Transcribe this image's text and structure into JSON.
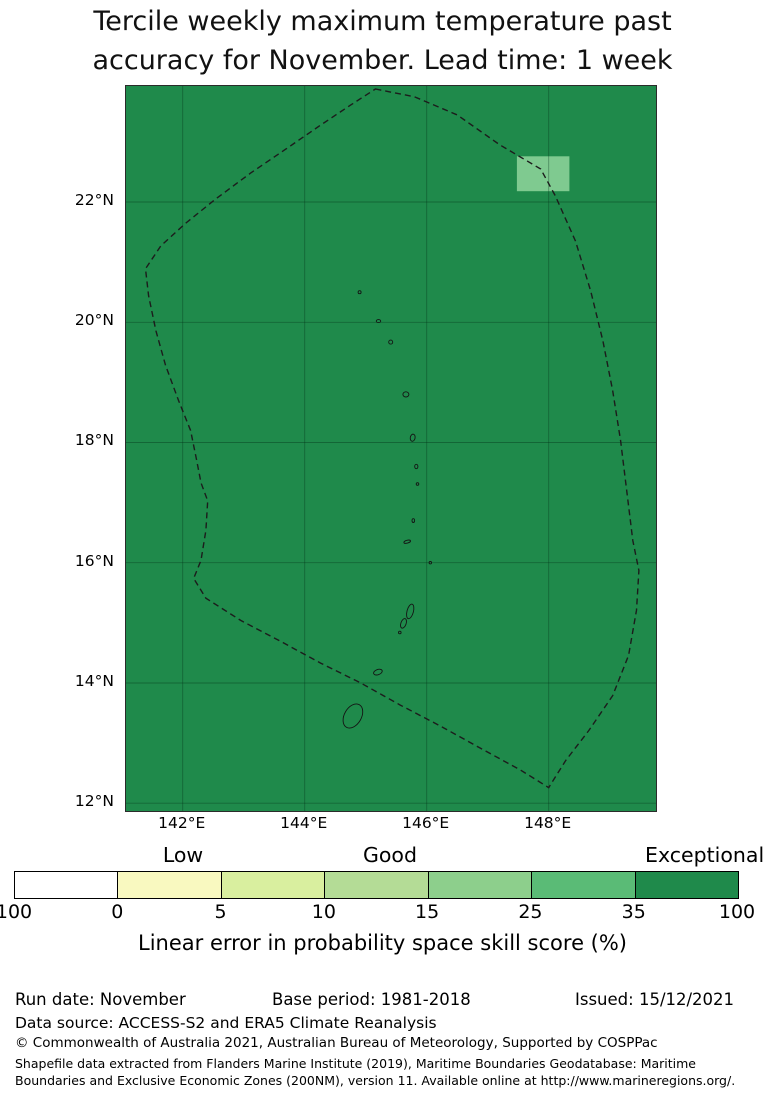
{
  "title": {
    "line1": "Tercile weekly maximum temperature past",
    "line2": "accuracy for November. Lead time: 1 week"
  },
  "footer": {
    "run_date": "Run date: November",
    "base_period": "Base period: 1981-2018",
    "issued": "Issued: 15/12/2021",
    "data_source": "Data source: ACCESS-S2 and ERA5 Climate Reanalysis",
    "copyright": "© Commonwealth of Australia 2021, Australian Bureau of Meteorology, Supported by COSPPac",
    "shapefile_note": "Shapefile data extracted from Flanders Marine Institute (2019), Maritime Boundaries Geodatabase: Maritime Boundaries and Exclusive Economic Zones (200NM), version 11. Available online at http://www.marineregions.org/."
  },
  "chart_data": {
    "type": "heatmap",
    "title": "Tercile weekly maximum temperature past accuracy for November. Lead time: 1 week",
    "projection": "lon-lat",
    "lon_range": [
      141.07,
      149.76
    ],
    "lat_range": [
      11.87,
      23.93
    ],
    "grid": true,
    "fill_color": "#1f8a4b",
    "fill_value_bin": "35-100",
    "grid_color": "rgba(0,45,20,0.38)",
    "x_ticks": [
      {
        "label": "142°E",
        "lon": 142
      },
      {
        "label": "144°E",
        "lon": 144
      },
      {
        "label": "146°E",
        "lon": 146
      },
      {
        "label": "148°E",
        "lon": 148
      }
    ],
    "y_ticks": [
      {
        "label": "12°N",
        "lat": 12
      },
      {
        "label": "14°N",
        "lat": 14
      },
      {
        "label": "16°N",
        "lat": 16
      },
      {
        "label": "18°N",
        "lat": 18
      },
      {
        "label": "20°N",
        "lat": 20
      },
      {
        "label": "22°N",
        "lat": 22
      }
    ],
    "anomaly_cell": {
      "lon_min": 147.48,
      "lon_max": 148.34,
      "lat_min": 22.18,
      "lat_max": 22.76,
      "color": "#7fca90",
      "value_bin": "15-25"
    },
    "boundary_dashed": [
      [
        145.16,
        23.88
      ],
      [
        145.8,
        23.75
      ],
      [
        146.5,
        23.45
      ],
      [
        147.2,
        22.95
      ],
      [
        147.87,
        22.55
      ],
      [
        148.11,
        22.1
      ],
      [
        148.44,
        21.35
      ],
      [
        148.69,
        20.52
      ],
      [
        148.89,
        19.69
      ],
      [
        149.05,
        18.86
      ],
      [
        149.18,
        18.03
      ],
      [
        149.28,
        17.2
      ],
      [
        149.38,
        16.37
      ],
      [
        149.48,
        15.87
      ],
      [
        149.44,
        15.21
      ],
      [
        149.31,
        14.46
      ],
      [
        149.05,
        13.79
      ],
      [
        148.66,
        13.21
      ],
      [
        148.28,
        12.71
      ],
      [
        148.0,
        12.26
      ],
      [
        147.54,
        12.55
      ],
      [
        146.89,
        12.91
      ],
      [
        146.23,
        13.28
      ],
      [
        145.57,
        13.63
      ],
      [
        144.92,
        14.0
      ],
      [
        144.26,
        14.33
      ],
      [
        143.61,
        14.69
      ],
      [
        142.95,
        15.04
      ],
      [
        142.38,
        15.41
      ],
      [
        142.18,
        15.74
      ],
      [
        142.3,
        16.04
      ],
      [
        142.38,
        16.54
      ],
      [
        142.41,
        17.03
      ],
      [
        142.3,
        17.33
      ],
      [
        142.23,
        17.7
      ],
      [
        142.13,
        18.2
      ],
      [
        141.93,
        18.7
      ],
      [
        141.72,
        19.28
      ],
      [
        141.56,
        19.86
      ],
      [
        141.44,
        20.44
      ],
      [
        141.39,
        20.89
      ],
      [
        141.64,
        21.27
      ],
      [
        142.05,
        21.65
      ],
      [
        142.54,
        22.05
      ],
      [
        143.11,
        22.48
      ],
      [
        143.69,
        22.88
      ],
      [
        144.26,
        23.28
      ],
      [
        144.75,
        23.61
      ]
    ],
    "islands": [
      [
        144.9,
        20.5,
        1.5,
        1.5,
        0
      ],
      [
        145.21,
        20.02,
        2.2,
        1.5,
        0
      ],
      [
        145.41,
        19.67,
        2.0,
        2.0,
        0
      ],
      [
        145.66,
        18.8,
        3.0,
        2.6,
        0
      ],
      [
        145.77,
        18.08,
        2.4,
        3.6,
        10
      ],
      [
        145.83,
        17.6,
        1.6,
        2.2,
        0
      ],
      [
        145.85,
        17.31,
        1.3,
        1.3,
        0
      ],
      [
        145.78,
        16.7,
        1.3,
        1.9,
        0
      ],
      [
        145.68,
        16.35,
        3.4,
        1.4,
        -15
      ],
      [
        146.06,
        16.0,
        1.2,
        1.2,
        0
      ],
      [
        145.73,
        15.19,
        3.2,
        7.5,
        15
      ],
      [
        145.62,
        14.99,
        2.6,
        5.0,
        20
      ],
      [
        145.56,
        14.84,
        1.3,
        1.3,
        0
      ],
      [
        145.2,
        14.18,
        4.5,
        2.6,
        -20
      ],
      [
        144.79,
        13.45,
        8.5,
        13.0,
        30
      ]
    ],
    "colorbar": {
      "caption": "Linear error in probability space skill score (%)",
      "qualitative": {
        "low": "Low",
        "good": "Good",
        "exceptional": "Exceptional"
      },
      "tick_labels": [
        "100",
        "0",
        "5",
        "10",
        "15",
        "25",
        "35",
        "100"
      ],
      "segments": [
        "#ffffff",
        "#f9f9c0",
        "#d9ef9f",
        "#b4dc96",
        "#8dcf8c",
        "#5abb76",
        "#1f8a4b"
      ],
      "bins": [
        "100-0",
        "0-5",
        "5-10",
        "10-15",
        "15-25",
        "25-35",
        "35-100"
      ]
    }
  }
}
